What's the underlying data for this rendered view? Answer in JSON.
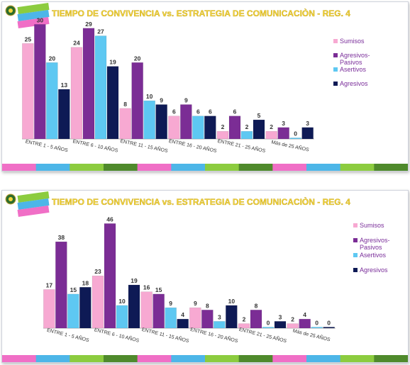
{
  "chart_data": [
    {
      "type": "bar",
      "title": "TIEMPO DE CONVIVENCIA  vs.  ESTRATEGIA DE COMUNICACIÒN  - REG. 4",
      "categories": [
        "ENTRE 1 - 5 AÑOS",
        "ENTRE 6 - 10 AÑOS",
        "ENTRE 11 - 15 AÑOS",
        "ENTRE 16 - 20 AÑOS",
        "ENTRE 21 - 25 AÑOS",
        "Más de 25 AÑOS"
      ],
      "series": [
        {
          "name": "Sumisos",
          "values": [
            25,
            24,
            8,
            6,
            2,
            2
          ]
        },
        {
          "name": "Agresivos-Pasivos",
          "values": [
            30,
            29,
            20,
            9,
            6,
            3
          ]
        },
        {
          "name": "Asertivos",
          "values": [
            20,
            27,
            10,
            6,
            2,
            0
          ]
        },
        {
          "name": "Agresivos",
          "values": [
            13,
            19,
            9,
            6,
            5,
            3
          ]
        }
      ],
      "legend_position": "right",
      "ylim": [
        0,
        31
      ],
      "grid": false
    },
    {
      "type": "bar",
      "title": "TIEMPO DE CONVIVENCIA  vs.  ESTRATEGIA DE COMUNICACIÒN  - REG. 4",
      "categories": [
        "ENTRE 1 - 5 AÑOS",
        "ENTRE 6 - 10 AÑOS",
        "ENTRE 11 - 15 AÑOS",
        "ENTRE 16 - 20 AÑOS",
        "ENTRE 21 - 25 AÑOS",
        "Más de 25 AÑOS"
      ],
      "series": [
        {
          "name": "Sumisos",
          "values": [
            17,
            23,
            16,
            9,
            2,
            2
          ]
        },
        {
          "name": "Agresivos-Pasivos",
          "values": [
            38,
            46,
            15,
            8,
            8,
            4
          ]
        },
        {
          "name": "Asertivos",
          "values": [
            15,
            10,
            9,
            3,
            0,
            0
          ]
        },
        {
          "name": "Agresivos",
          "values": [
            18,
            19,
            4,
            10,
            3,
            0
          ]
        }
      ],
      "legend_position": "right",
      "ylim": [
        0,
        48
      ],
      "grid": false
    }
  ],
  "series_colors": [
    "#f7a9d2",
    "#7b2d95",
    "#5ec8f2",
    "#0e1a55"
  ],
  "footer_stripe_colors": [
    "#f06fc6",
    "#4db6e8",
    "#8ccc3f",
    "#4f8a2c",
    "#f06fc6",
    "#4db6e8",
    "#8ccc3f",
    "#4f8a2c",
    "#f06fc6",
    "#4db6e8",
    "#8ccc3f",
    "#4f8a2c"
  ],
  "logo_icons": [
    "colombia-seal-icon",
    "bienestar-familiar-logo-icon"
  ]
}
